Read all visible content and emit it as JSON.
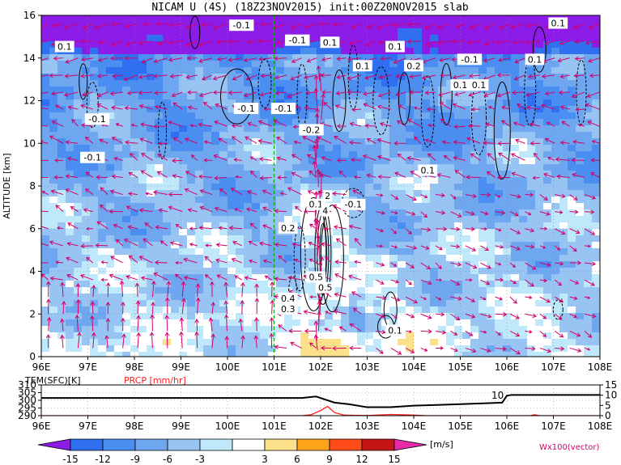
{
  "title": "NICAM U (4S) (18Z23NOV2015) init:00Z20NOV2015 slab",
  "chart_data": [
    {
      "type": "heatmap",
      "title": "NICAM U (4S) (18Z23NOV2015) init:00Z20NOV2015 slab",
      "xlabel": "",
      "ylabel": "ALTITUDE [km]",
      "x_ticks": [
        "96E",
        "97E",
        "98E",
        "99E",
        "100E",
        "101E",
        "102E",
        "103E",
        "104E",
        "105E",
        "106E",
        "107E",
        "108E"
      ],
      "y_ticks": [
        "0",
        "2",
        "4",
        "6",
        "8",
        "10",
        "12",
        "14",
        "16"
      ],
      "xlim": [
        96,
        108
      ],
      "ylim": [
        0,
        16
      ],
      "grid": true,
      "marker_line_lon": 101,
      "contour_labels": [
        {
          "text": "-0.1",
          "lon": 100.3,
          "alt": 15.5
        },
        {
          "text": "0.1",
          "lon": 96.5,
          "alt": 14.5
        },
        {
          "text": "-0.1",
          "lon": 101.5,
          "alt": 14.8
        },
        {
          "text": "0.1",
          "lon": 102.2,
          "alt": 14.7
        },
        {
          "text": "0.1",
          "lon": 103.6,
          "alt": 14.5
        },
        {
          "text": "0.2",
          "lon": 104.0,
          "alt": 13.6
        },
        {
          "text": "-0.1",
          "lon": 105.2,
          "alt": 13.9
        },
        {
          "text": "0.1",
          "lon": 106.6,
          "alt": 13.9
        },
        {
          "text": "0.1",
          "lon": 107.1,
          "alt": 15.6
        },
        {
          "text": "0.1",
          "lon": 102.9,
          "alt": 13.6
        },
        {
          "text": "0.1",
          "lon": 105.0,
          "alt": 12.7
        },
        {
          "text": "0.1",
          "lon": 105.4,
          "alt": 12.7
        },
        {
          "text": "-0.1",
          "lon": 97.2,
          "alt": 11.1
        },
        {
          "text": "-0.1",
          "lon": 101.2,
          "alt": 11.6
        },
        {
          "text": "-0.1",
          "lon": 100.4,
          "alt": 11.6
        },
        {
          "text": "-0.2",
          "lon": 101.8,
          "alt": 10.6
        },
        {
          "text": "-0.1",
          "lon": 97.1,
          "alt": 9.3
        },
        {
          "text": "0.1",
          "lon": 104.3,
          "alt": 8.7
        },
        {
          "text": "-0.1",
          "lon": 102.7,
          "alt": 7.1
        },
        {
          "text": "0.1",
          "lon": 101.9,
          "alt": 7.1
        },
        {
          "text": "0.2",
          "lon": 101.3,
          "alt": 6.0
        },
        {
          "text": "0.4",
          "lon": 101.3,
          "alt": 2.7
        },
        {
          "text": "0.3",
          "lon": 101.3,
          "alt": 2.2
        },
        {
          "text": "0.5",
          "lon": 101.9,
          "alt": 3.7
        },
        {
          "text": "0.5",
          "lon": 102.1,
          "alt": 3.2
        },
        {
          "text": "0.1",
          "lon": 103.6,
          "alt": 1.2
        },
        {
          "text": "2",
          "lon": 102.15,
          "alt": 7.5
        },
        {
          "text": "4",
          "lon": 102.1,
          "alt": 6.8
        }
      ],
      "colorbar": {
        "ticks": [
          "-15",
          "-12",
          "-9",
          "-6",
          "-3",
          "3",
          "6",
          "9",
          "12",
          "15"
        ],
        "unit": "[m/s]",
        "colors": [
          "#8c1ce8",
          "#2f6ff0",
          "#4a8ef2",
          "#6ea6f0",
          "#98c4f4",
          "#bfe9fb",
          "#ffffff",
          "#fde08a",
          "#ffa31a",
          "#ff4c1a",
          "#c41616",
          "#e62aa8"
        ]
      },
      "vector_label": "Wx100(vector)"
    },
    {
      "type": "line",
      "x_ticks": [
        "96E",
        "97E",
        "98E",
        "99E",
        "100E",
        "101E",
        "102E",
        "103E",
        "104E",
        "105E",
        "106E",
        "107E",
        "108E"
      ],
      "xlim": [
        96,
        108
      ],
      "series_labels": [
        "TEM(SFC)[K]",
        "PRCP [mm/hr]"
      ],
      "left_axis_ticks": [
        "290",
        "295",
        "300",
        "305",
        "310"
      ],
      "right_axis_ticks": [
        "0",
        "5",
        "10",
        "15"
      ],
      "left_ylim": [
        290,
        310
      ],
      "right_ylim": [
        0,
        15
      ],
      "series": [
        {
          "name": "TEM(SFC)[K]",
          "color": "#000000",
          "x": [
            96,
            97,
            98,
            99,
            100,
            101,
            101.6,
            101.9,
            102.1,
            102.3,
            102.6,
            103.0,
            103.5,
            104.0,
            104.5,
            105.0,
            105.5,
            105.9,
            106.0,
            106.1,
            106.5,
            107.0,
            107.5,
            108
          ],
          "values": [
            301.5,
            301.5,
            301.5,
            301.5,
            301.5,
            301.5,
            301.5,
            302.5,
            300.5,
            298.5,
            297.5,
            295.5,
            295.5,
            296.5,
            297,
            297.5,
            298,
            298.5,
            303,
            303.5,
            303.5,
            303.5,
            303.5,
            303.5
          ]
        },
        {
          "name": "PRCP [mm/hr]",
          "color": "#ff2020",
          "x": [
            96,
            101,
            101.6,
            101.8,
            102.0,
            102.15,
            102.3,
            102.5,
            102.7,
            103.0,
            103.5,
            104.0,
            104.3,
            104.6,
            105,
            106,
            106.5,
            106.6,
            106.7,
            107,
            108
          ],
          "values": [
            0,
            0,
            0,
            0.5,
            2.5,
            4.5,
            1.5,
            0.3,
            0.2,
            0.1,
            0.6,
            0.3,
            0,
            0,
            0,
            0,
            0,
            0.5,
            0,
            0,
            0
          ]
        }
      ],
      "annotations": [
        "10"
      ]
    }
  ]
}
